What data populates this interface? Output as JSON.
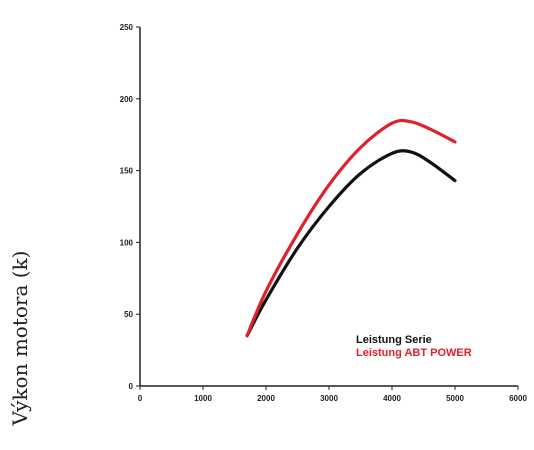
{
  "chart_data": {
    "type": "line",
    "title": "",
    "ylabel": "Výkon motora  (k)",
    "xlabel": "",
    "xlim": [
      0,
      6000
    ],
    "ylim": [
      0,
      250
    ],
    "x_ticks": [
      "0",
      "1000",
      "2000",
      "3000",
      "4000",
      "5000",
      "6000"
    ],
    "y_ticks": [
      "0",
      "50",
      "100",
      "150",
      "200",
      "250"
    ],
    "grid": false,
    "legend_position": "bottom-right",
    "series": [
      {
        "name": "Leistung Serie",
        "color": "#111111",
        "x": [
          1700,
          2000,
          2500,
          3000,
          3500,
          4000,
          4300,
          4600,
          5000
        ],
        "y": [
          35,
          60,
          96,
          125,
          148,
          162,
          163,
          156,
          143
        ]
      },
      {
        "name": "Leistung ABT POWER",
        "color": "#e0202a",
        "x": [
          1700,
          2000,
          2500,
          3000,
          3500,
          4000,
          4300,
          4600,
          5000
        ],
        "y": [
          35,
          66,
          106,
          140,
          166,
          183,
          184,
          179,
          170
        ]
      }
    ]
  }
}
